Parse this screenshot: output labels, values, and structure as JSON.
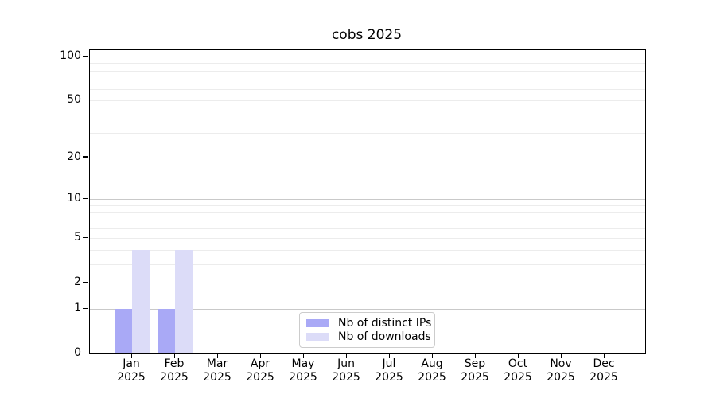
{
  "chart_data": {
    "type": "bar",
    "title": "cobs 2025",
    "categories": [
      "Jan",
      "Feb",
      "Mar",
      "Apr",
      "May",
      "Jun",
      "Jul",
      "Aug",
      "Sep",
      "Oct",
      "Nov",
      "Dec"
    ],
    "category_year": "2025",
    "series": [
      {
        "name": "Nb of distinct IPs",
        "color": "#a9a9f6",
        "values": [
          1,
          1,
          0,
          0,
          0,
          0,
          0,
          0,
          0,
          0,
          0,
          0
        ]
      },
      {
        "name": "Nb of downloads",
        "color": "#dcdcf8",
        "values": [
          4,
          4,
          0,
          0,
          0,
          0,
          0,
          0,
          0,
          0,
          0,
          0
        ]
      }
    ],
    "yscale": "log1p",
    "ylim": [
      0,
      111
    ],
    "ytick_values": [
      0,
      1,
      2,
      5,
      10,
      20,
      50,
      100
    ],
    "ytick_labels": [
      "0",
      "1",
      "2",
      "5",
      "10",
      "20",
      "50",
      "100"
    ],
    "major_gridlines": [
      1,
      10,
      100
    ],
    "minor_gridlines": [
      2,
      3,
      4,
      5,
      6,
      7,
      8,
      9,
      20,
      30,
      40,
      50,
      60,
      70,
      80,
      90
    ],
    "grid": true,
    "legend_position": "inside-bottom-center",
    "colors": {
      "background": "#ffffff",
      "axis": "#000000",
      "text": "#000000",
      "major_grid": "#c9c9c9",
      "minor_grid": "#ececec",
      "legend_border": "#cccccc"
    }
  }
}
